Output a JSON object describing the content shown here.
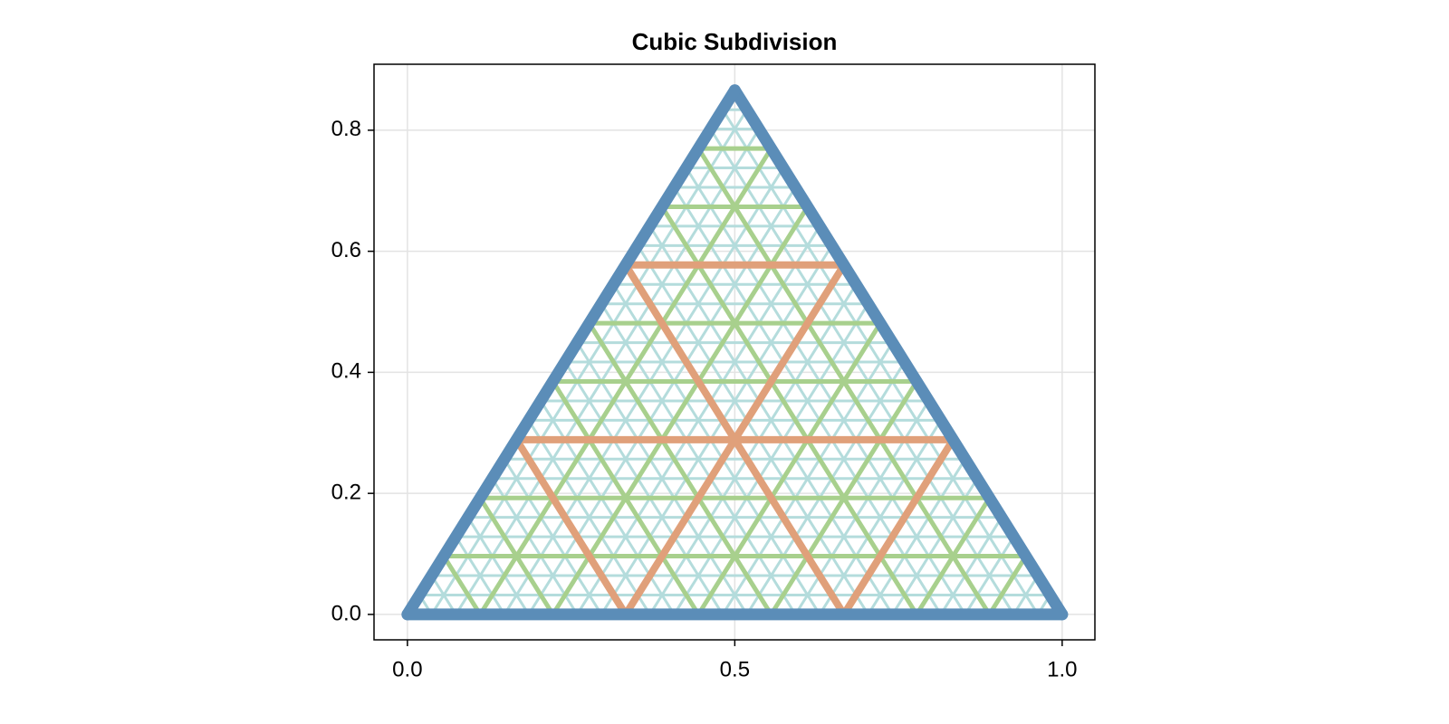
{
  "chart_data": {
    "type": "triangle-subdivision",
    "title": "Cubic Subdivision",
    "vertices": [
      [
        0,
        0
      ],
      [
        1,
        0
      ],
      [
        0.5,
        0.866
      ]
    ],
    "levels": [
      {
        "subdivisions": 27,
        "color": "#b4dcdc"
      },
      {
        "subdivisions": 9,
        "color": "#a8d08d"
      },
      {
        "subdivisions": 3,
        "color": "#e0a07a"
      },
      {
        "subdivisions": 1,
        "color": "#5b8db8"
      }
    ],
    "xlim": [
      -0.051,
      1.05
    ],
    "ylim": [
      -0.042,
      0.909
    ],
    "xticks": [
      {
        "value": 0,
        "label": "0.0"
      },
      0.5,
      {
        "value": 1,
        "label": "1.0"
      }
    ],
    "yticks": [
      {
        "value": 0,
        "label": "0.0"
      },
      0.2,
      0.4,
      0.6,
      0.8
    ],
    "grid": true
  }
}
